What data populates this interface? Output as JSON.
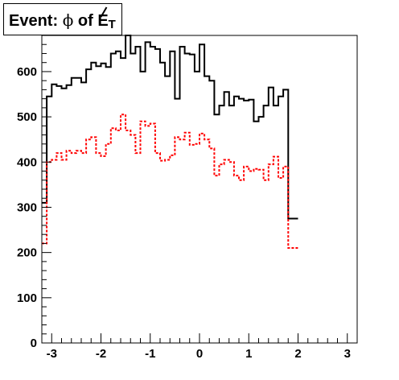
{
  "chart_data": {
    "type": "histogram-step",
    "title": "Event: ϕ of E̸T",
    "title_parts": {
      "prefix": "Event: ",
      "phi": "ϕ",
      "of": " of ",
      "met": "E",
      "sub": "T"
    },
    "xlim": [
      -3.2,
      3.2
    ],
    "ylim": [
      0,
      680
    ],
    "x_ticks": [
      -3,
      -2,
      -1,
      0,
      1,
      2,
      3
    ],
    "x_tick_labels": [
      "-3",
      "-2",
      "-1",
      "0",
      "1",
      "2",
      "3"
    ],
    "y_ticks": [
      0,
      100,
      200,
      300,
      400,
      500,
      600
    ],
    "y_tick_labels": [
      "0",
      "100",
      "200",
      "300",
      "400",
      "500",
      "600"
    ],
    "bin_edges_start": -3.2,
    "bin_width": 0.1,
    "series": [
      {
        "style": "solid",
        "color": "#000000",
        "values": [
          310,
          545,
          572,
          568,
          563,
          570,
          586,
          586,
          576,
          605,
          620,
          612,
          618,
          610,
          640,
          645,
          630,
          680,
          640,
          655,
          600,
          665,
          655,
          650,
          620,
          590,
          645,
          540,
          655,
          640,
          638,
          600,
          660,
          590,
          580,
          505,
          525,
          555,
          525,
          545,
          540,
          536,
          538,
          490,
          500,
          525,
          565,
          525,
          545,
          560,
          275,
          275
        ]
      },
      {
        "style": "dotted",
        "color": "#ff0000",
        "values": [
          220,
          400,
          405,
          420,
          405,
          425,
          420,
          425,
          420,
          450,
          455,
          420,
          413,
          440,
          475,
          470,
          505,
          470,
          460,
          420,
          490,
          480,
          485,
          420,
          403,
          405,
          415,
          455,
          450,
          465,
          438,
          440,
          463,
          450,
          430,
          370,
          395,
          405,
          400,
          370,
          360,
          390,
          380,
          385,
          383,
          360,
          395,
          412,
          365,
          390,
          210,
          210
        ]
      }
    ],
    "grid": false,
    "legend": "none"
  }
}
